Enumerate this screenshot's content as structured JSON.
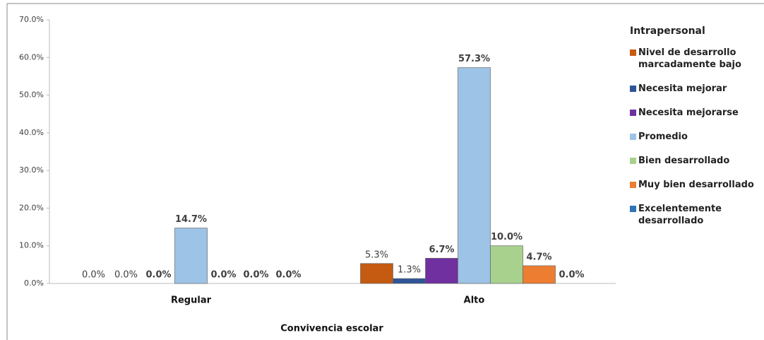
{
  "chart_data": {
    "type": "bar",
    "categories": [
      "Regular",
      "Alto"
    ],
    "x_label": "Convivencia escolar",
    "legend_title": "Intrapersonal",
    "ylim": [
      0,
      70
    ],
    "yticks": [
      {
        "value": 0,
        "label": "0.0%"
      },
      {
        "value": 10,
        "label": "10.0%"
      },
      {
        "value": 20,
        "label": "20.0%"
      },
      {
        "value": 30,
        "label": "30.0%"
      },
      {
        "value": 40,
        "label": "40.0%"
      },
      {
        "value": 50,
        "label": "50.0%"
      },
      {
        "value": 60,
        "label": "60.0%"
      },
      {
        "value": 70,
        "label": "70.0%"
      }
    ],
    "legend": "right",
    "series": [
      {
        "name": "Nivel de desarrollo marcadamente bajo",
        "color": "#c55a11",
        "values": [
          0,
          5.3
        ],
        "value_labels": [
          "0.0%",
          "5.3%"
        ]
      },
      {
        "name": "Necesita mejorar",
        "color": "#2f5597",
        "values": [
          0,
          1.3
        ],
        "value_labels": [
          "0.0%",
          "1.3%"
        ]
      },
      {
        "name": "Necesita mejorarse",
        "color": "#7030a0",
        "values": [
          0,
          6.7
        ],
        "value_labels": [
          "0.0%",
          "6.7%"
        ]
      },
      {
        "name": "Promedio",
        "color": "#9dc3e6",
        "values": [
          14.7,
          57.3
        ],
        "value_labels": [
          "14.7%",
          "57.3%"
        ]
      },
      {
        "name": "Bien desarrollado",
        "color": "#a9d18e",
        "values": [
          0,
          10.0
        ],
        "value_labels": [
          "0.0%",
          "10.0%"
        ]
      },
      {
        "name": "Muy bien desarrollado",
        "color": "#ed7d31",
        "values": [
          0,
          4.7
        ],
        "value_labels": [
          "0.0%",
          "4.7%"
        ]
      },
      {
        "name": "Excelentemente desarrollado",
        "color": "#2e75b6",
        "values": [
          0,
          0
        ],
        "value_labels": [
          "0.0%",
          "0.0%"
        ]
      }
    ]
  }
}
